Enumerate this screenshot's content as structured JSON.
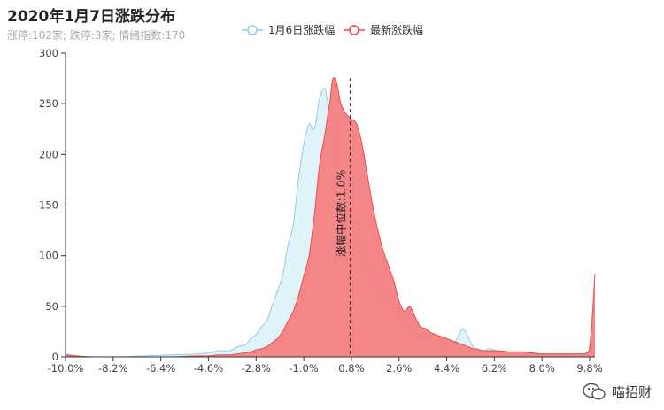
{
  "chart_data": {
    "type": "area",
    "title": "2020年1月7日涨跌分布",
    "subtitle": "涨停:102家; 跌停:3家; 情绪指数:170",
    "xlim": [
      -10,
      10
    ],
    "ylim": [
      0,
      300
    ],
    "y_ticks": [
      0,
      50,
      100,
      150,
      200,
      250,
      300
    ],
    "x_ticks": [
      "-10.0%",
      "-8.2%",
      "-6.4%",
      "-4.6%",
      "-2.8%",
      "-1.0%",
      "0.8%",
      "2.6%",
      "4.4%",
      "6.2%",
      "8.0%",
      "9.8%"
    ],
    "grid": false,
    "legend_position": "top-center",
    "series": [
      {
        "name": "1月6日涨跌幅",
        "color": "#8fcde6",
        "fill": "#ddf1fa",
        "x": [
          -10.0,
          -9.6,
          -9.0,
          -8.0,
          -7.0,
          -6.0,
          -5.0,
          -4.6,
          -4.2,
          -3.8,
          -3.5,
          -3.2,
          -3.0,
          -2.8,
          -2.6,
          -2.4,
          -2.2,
          -2.0,
          -1.8,
          -1.6,
          -1.4,
          -1.2,
          -1.0,
          -0.8,
          -0.6,
          -0.4,
          -0.2,
          -0.05,
          0.1,
          0.25,
          0.4,
          0.6,
          0.8,
          1.0,
          1.2,
          1.4,
          1.6,
          1.8,
          2.0,
          2.2,
          2.4,
          2.6,
          2.8,
          3.0,
          3.2,
          3.4,
          3.6,
          3.8,
          4.0,
          4.2,
          4.4,
          4.6,
          4.8,
          5.0,
          5.2,
          5.4,
          5.6,
          5.8,
          6.0,
          6.4,
          6.8,
          7.2,
          7.6,
          8.0,
          8.4,
          8.8,
          9.2,
          9.5,
          9.7,
          9.8,
          9.9,
          10.0
        ],
        "values": [
          3,
          1,
          0,
          0,
          1,
          2,
          3,
          4,
          6,
          6,
          10,
          12,
          18,
          22,
          30,
          35,
          50,
          65,
          80,
          110,
          130,
          175,
          210,
          230,
          225,
          255,
          265,
          245,
          240,
          200,
          170,
          160,
          140,
          120,
          110,
          95,
          80,
          70,
          60,
          58,
          50,
          45,
          35,
          30,
          25,
          20,
          18,
          22,
          20,
          15,
          15,
          13,
          18,
          28,
          20,
          10,
          8,
          6,
          8,
          5,
          4,
          3,
          3,
          2,
          2,
          2,
          1,
          1,
          1,
          2,
          3,
          5
        ]
      },
      {
        "name": "最新涨跌幅",
        "color": "#ef4a4a",
        "fill": "#f47f82",
        "x": [
          -10.0,
          -9.6,
          -9.0,
          -8.0,
          -7.0,
          -6.0,
          -5.0,
          -4.6,
          -4.2,
          -3.8,
          -3.5,
          -3.2,
          -3.0,
          -2.8,
          -2.6,
          -2.4,
          -2.2,
          -2.0,
          -1.8,
          -1.6,
          -1.4,
          -1.2,
          -1.0,
          -0.8,
          -0.6,
          -0.4,
          -0.2,
          0.0,
          0.1,
          0.25,
          0.4,
          0.6,
          0.8,
          1.0,
          1.2,
          1.4,
          1.6,
          1.8,
          2.0,
          2.2,
          2.4,
          2.6,
          2.8,
          3.0,
          3.2,
          3.4,
          3.6,
          3.8,
          4.0,
          4.2,
          4.4,
          4.6,
          4.8,
          5.0,
          5.2,
          5.4,
          5.6,
          5.8,
          6.0,
          6.4,
          6.8,
          7.2,
          7.6,
          8.0,
          8.4,
          8.8,
          9.2,
          9.5,
          9.7,
          9.8,
          9.9,
          10.0
        ],
        "values": [
          2,
          1,
          0,
          0,
          0,
          0,
          1,
          1,
          2,
          2,
          3,
          4,
          5,
          7,
          8,
          10,
          14,
          18,
          25,
          35,
          45,
          60,
          80,
          100,
          140,
          190,
          220,
          255,
          275,
          270,
          250,
          240,
          235,
          230,
          210,
          180,
          150,
          125,
          105,
          90,
          75,
          55,
          45,
          50,
          40,
          30,
          28,
          24,
          22,
          20,
          18,
          16,
          14,
          12,
          10,
          8,
          7,
          6,
          6,
          6,
          5,
          5,
          4,
          3,
          3,
          3,
          3,
          3,
          4,
          10,
          40,
          82
        ]
      }
    ],
    "annotation": {
      "x": 0.75,
      "label": "涨幅中位数:1.0%"
    }
  },
  "watermark": {
    "text": "喵招财"
  }
}
